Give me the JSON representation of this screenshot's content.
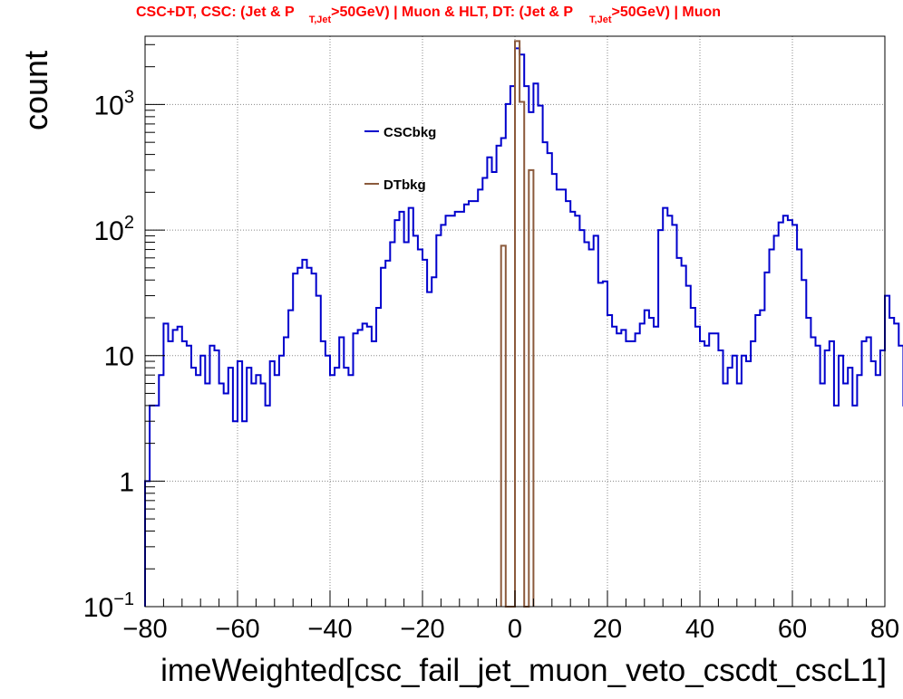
{
  "chart_data": {
    "type": "line",
    "title_parts": {
      "a": "CSC+DT, CSC: (Jet & P",
      "sub1": "T,Jet",
      "b": ">50GeV) | Muon & HLT, DT: (Jet & P",
      "sub2": "T,Jet",
      "c": ">50GeV) | Muon"
    },
    "xlabel": "imeWeighted[csc_fail_jet_muon_veto_cscdt_cscL1]",
    "ylabel": "count",
    "xlim": [
      -80,
      80
    ],
    "ylim": [
      0.1,
      3500
    ],
    "log_y": true,
    "grid": true,
    "x_ticks": [
      {
        "v": -80,
        "label": "−80"
      },
      {
        "v": -60,
        "label": "−60"
      },
      {
        "v": -40,
        "label": "−40"
      },
      {
        "v": -20,
        "label": "−20"
      },
      {
        "v": 0,
        "label": "0"
      },
      {
        "v": 20,
        "label": "20"
      },
      {
        "v": 40,
        "label": "40"
      },
      {
        "v": 60,
        "label": "60"
      },
      {
        "v": 80,
        "label": "80"
      }
    ],
    "y_ticks": [
      {
        "v": 0.1,
        "base": "10",
        "exp": "−1"
      },
      {
        "v": 1,
        "base": "1",
        "exp": ""
      },
      {
        "v": 10,
        "base": "10",
        "exp": ""
      },
      {
        "v": 100,
        "base": "10",
        "exp": "2"
      },
      {
        "v": 1000,
        "base": "10",
        "exp": "3"
      }
    ],
    "bin_width": 1,
    "legend": [
      {
        "name": "CSCbkg",
        "color": "#0000cc"
      },
      {
        "name": "DTbkg",
        "color": "#8b5a3c"
      }
    ],
    "series": [
      {
        "name": "CSCbkg",
        "color": "#0000cc",
        "x_start": -80,
        "values": [
          1,
          4,
          4,
          7,
          18,
          13,
          16,
          17,
          13,
          12,
          8,
          7,
          10,
          6,
          12,
          11,
          6,
          5,
          8,
          3,
          9,
          3,
          8,
          6,
          7,
          6,
          4,
          9,
          7,
          10,
          14,
          23,
          45,
          50,
          58,
          50,
          45,
          30,
          13,
          10,
          7,
          8,
          14,
          8,
          7,
          15,
          16,
          18,
          17,
          13,
          24,
          50,
          57,
          80,
          120,
          140,
          80,
          150,
          90,
          70,
          58,
          32,
          42,
          91,
          110,
          130,
          130,
          140,
          140,
          160,
          170,
          170,
          210,
          260,
          380,
          290,
          470,
          540,
          1010,
          1400,
          2800,
          2500,
          1400,
          870,
          1470,
          980,
          500,
          410,
          280,
          210,
          210,
          170,
          140,
          130,
          100,
          80,
          70,
          90,
          38,
          39,
          21,
          17,
          15,
          16,
          13,
          13,
          15,
          18,
          23,
          20,
          17,
          100,
          150,
          130,
          110,
          60,
          52,
          36,
          24,
          17,
          13,
          12,
          15,
          15,
          11,
          6,
          8,
          10,
          6,
          10,
          9,
          13,
          21,
          23,
          46,
          70,
          90,
          115,
          130,
          120,
          110,
          70,
          40,
          20,
          14,
          12,
          6,
          11,
          13,
          4,
          10,
          6,
          8,
          4,
          7,
          13,
          14,
          9,
          7,
          11,
          30,
          20,
          18,
          12,
          4
        ]
      },
      {
        "name": "DTbkg",
        "color": "#8b5a3c",
        "x_start": -3,
        "values": [
          75,
          0.1,
          0.1,
          3200,
          1050,
          0.1,
          300
        ]
      }
    ]
  }
}
